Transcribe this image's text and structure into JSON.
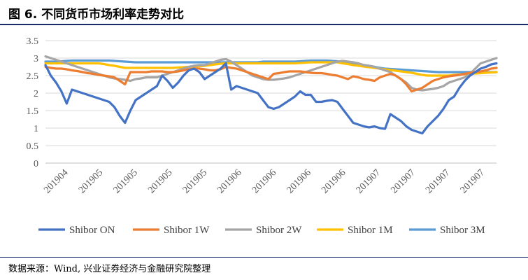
{
  "header": {
    "title": "图 6. 不同货币市场利率走势对比"
  },
  "footer": {
    "source": "数据来源：Wind, 兴业证券经济与金融研究院整理"
  },
  "chart_data": {
    "type": "line",
    "title": "",
    "xlabel": "",
    "ylabel": "",
    "ylim": [
      0,
      3.5
    ],
    "yticks": [
      "0",
      "0.5",
      "1",
      "1.5",
      "2",
      "2.5",
      "3",
      "3.5"
    ],
    "x_tick_labels": [
      "201904",
      "201905",
      "201905",
      "201905",
      "201905",
      "201906",
      "201906",
      "201906",
      "201906",
      "201907",
      "201907",
      "201907",
      "201907"
    ],
    "grid": true,
    "legend_position": "bottom",
    "series": [
      {
        "name": "Shibor ON",
        "color": "#4472c4",
        "values": [
          2.8,
          2.5,
          2.3,
          2.05,
          1.7,
          2.1,
          2.05,
          2.0,
          1.95,
          1.9,
          1.85,
          1.8,
          1.75,
          1.6,
          1.35,
          1.15,
          1.5,
          1.8,
          1.9,
          2.0,
          2.1,
          2.2,
          2.5,
          2.35,
          2.15,
          2.3,
          2.5,
          2.65,
          2.7,
          2.6,
          2.4,
          2.5,
          2.6,
          2.7,
          2.85,
          2.1,
          2.2,
          2.15,
          2.1,
          2.05,
          2.0,
          1.8,
          1.6,
          1.55,
          1.6,
          1.7,
          1.8,
          1.9,
          2.05,
          1.95,
          1.95,
          1.75,
          1.75,
          1.78,
          1.8,
          1.75,
          1.55,
          1.35,
          1.15,
          1.1,
          1.05,
          1.02,
          1.05,
          1.0,
          0.98,
          1.4,
          1.3,
          1.2,
          1.05,
          0.95,
          0.9,
          0.85,
          1.05,
          1.2,
          1.35,
          1.55,
          1.8,
          1.9,
          2.15,
          2.35,
          2.5,
          2.6,
          2.7,
          2.75,
          2.82,
          2.85
        ]
      },
      {
        "name": "Shibor 1W",
        "color": "#ed7d31",
        "values": [
          2.75,
          2.72,
          2.7,
          2.7,
          2.68,
          2.65,
          2.63,
          2.6,
          2.57,
          2.55,
          2.52,
          2.5,
          2.48,
          2.45,
          2.35,
          2.25,
          2.6,
          2.6,
          2.6,
          2.6,
          2.62,
          2.62,
          2.62,
          2.6,
          2.6,
          2.62,
          2.65,
          2.68,
          2.7,
          2.7,
          2.68,
          2.65,
          2.65,
          2.68,
          2.75,
          2.72,
          2.7,
          2.65,
          2.6,
          2.55,
          2.5,
          2.45,
          2.4,
          2.55,
          2.57,
          2.6,
          2.62,
          2.62,
          2.62,
          2.6,
          2.58,
          2.57,
          2.57,
          2.55,
          2.52,
          2.5,
          2.45,
          2.4,
          2.48,
          2.45,
          2.4,
          2.38,
          2.35,
          2.45,
          2.5,
          2.55,
          2.5,
          2.4,
          2.25,
          2.05,
          2.1,
          2.15,
          2.25,
          2.35,
          2.4,
          2.45,
          2.48,
          2.5,
          2.52,
          2.55,
          2.58,
          2.6,
          2.62,
          2.65,
          2.7,
          2.72
        ]
      },
      {
        "name": "Shibor 2W",
        "color": "#a5a5a5",
        "values": [
          3.05,
          3.0,
          2.95,
          2.9,
          2.85,
          2.8,
          2.75,
          2.7,
          2.65,
          2.6,
          2.55,
          2.5,
          2.45,
          2.42,
          2.4,
          2.38,
          2.35,
          2.4,
          2.42,
          2.45,
          2.45,
          2.45,
          2.5,
          2.55,
          2.6,
          2.65,
          2.7,
          2.75,
          2.78,
          2.8,
          2.8,
          2.85,
          2.9,
          2.95,
          2.97,
          2.9,
          2.8,
          2.7,
          2.6,
          2.5,
          2.45,
          2.4,
          2.38,
          2.38,
          2.4,
          2.42,
          2.45,
          2.5,
          2.55,
          2.6,
          2.65,
          2.7,
          2.75,
          2.8,
          2.85,
          2.9,
          2.92,
          2.9,
          2.88,
          2.85,
          2.8,
          2.78,
          2.75,
          2.7,
          2.65,
          2.6,
          2.5,
          2.4,
          2.3,
          2.15,
          2.1,
          2.08,
          2.1,
          2.12,
          2.15,
          2.2,
          2.3,
          2.35,
          2.4,
          2.45,
          2.55,
          2.7,
          2.85,
          2.9,
          2.95,
          3.0
        ]
      },
      {
        "name": "Shibor 1M",
        "color": "#ffc000",
        "values": [
          2.85,
          2.85,
          2.85,
          2.85,
          2.85,
          2.85,
          2.85,
          2.85,
          2.85,
          2.85,
          2.85,
          2.83,
          2.8,
          2.78,
          2.75,
          2.72,
          2.72,
          2.72,
          2.72,
          2.72,
          2.72,
          2.72,
          2.72,
          2.72,
          2.72,
          2.73,
          2.74,
          2.75,
          2.76,
          2.77,
          2.78,
          2.8,
          2.82,
          2.84,
          2.85,
          2.85,
          2.85,
          2.85,
          2.85,
          2.85,
          2.85,
          2.85,
          2.85,
          2.85,
          2.85,
          2.85,
          2.85,
          2.85,
          2.86,
          2.87,
          2.88,
          2.88,
          2.88,
          2.88,
          2.88,
          2.88,
          2.85,
          2.83,
          2.8,
          2.78,
          2.76,
          2.74,
          2.72,
          2.7,
          2.68,
          2.66,
          2.64,
          2.62,
          2.6,
          2.58,
          2.55,
          2.52,
          2.5,
          2.5,
          2.5,
          2.5,
          2.5,
          2.52,
          2.53,
          2.54,
          2.55,
          2.56,
          2.57,
          2.58,
          2.59,
          2.6
        ]
      },
      {
        "name": "Shibor 3M",
        "color": "#5b9bd5",
        "values": [
          2.9,
          2.9,
          2.9,
          2.91,
          2.92,
          2.93,
          2.93,
          2.93,
          2.93,
          2.93,
          2.93,
          2.93,
          2.93,
          2.92,
          2.91,
          2.9,
          2.89,
          2.88,
          2.88,
          2.88,
          2.88,
          2.88,
          2.88,
          2.88,
          2.88,
          2.88,
          2.88,
          2.88,
          2.88,
          2.88,
          2.88,
          2.88,
          2.88,
          2.88,
          2.88,
          2.88,
          2.88,
          2.88,
          2.88,
          2.88,
          2.88,
          2.9,
          2.9,
          2.9,
          2.9,
          2.9,
          2.9,
          2.9,
          2.91,
          2.92,
          2.93,
          2.93,
          2.93,
          2.93,
          2.92,
          2.91,
          2.9,
          2.88,
          2.85,
          2.83,
          2.8,
          2.78,
          2.75,
          2.72,
          2.7,
          2.69,
          2.68,
          2.67,
          2.66,
          2.65,
          2.64,
          2.63,
          2.62,
          2.61,
          2.6,
          2.6,
          2.6,
          2.6,
          2.6,
          2.6,
          2.6,
          2.6,
          2.6,
          2.6,
          2.6,
          2.6
        ]
      }
    ]
  }
}
